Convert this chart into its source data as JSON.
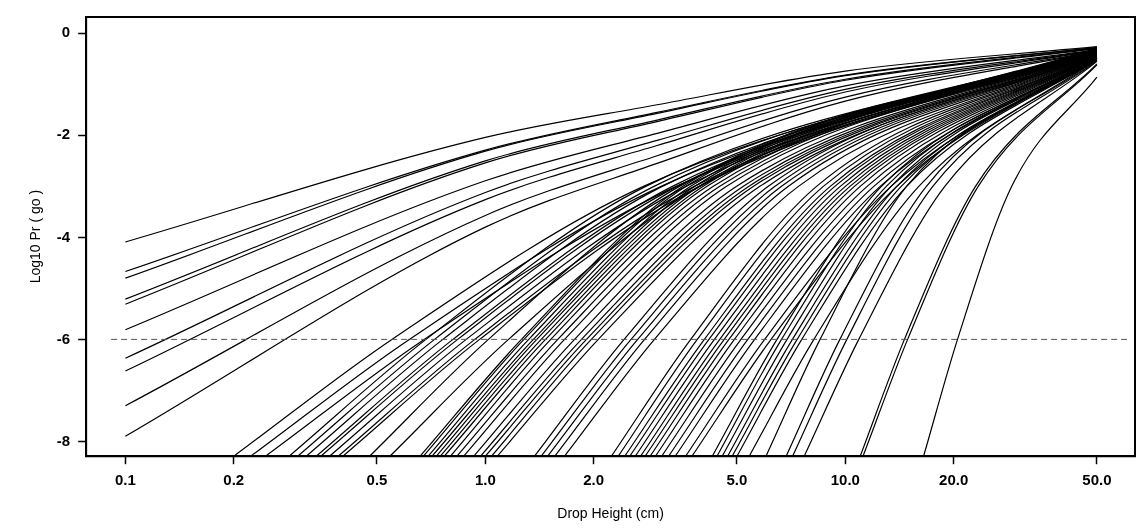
{
  "chart_data": {
    "type": "line",
    "xlabel": "Drop Height (cm)",
    "ylabel": "Log10 Pr ( go )",
    "log": "x",
    "grid": false,
    "legend": false,
    "marker": "none",
    "line_style": "solid",
    "xlim": [
      0.0778,
      63.8
    ],
    "ylim": [
      -8.29,
      0.32
    ],
    "xticks": [
      0.1,
      0.2,
      0.5,
      {
        "value": 1,
        "label": "1.0"
      },
      {
        "value": 2,
        "label": "2.0"
      },
      {
        "value": 5,
        "label": "5.0"
      },
      {
        "value": 10,
        "label": "10.0"
      },
      {
        "value": 20,
        "label": "20.0"
      },
      {
        "value": 50,
        "label": "50.0"
      }
    ],
    "yticks": [
      0,
      -2,
      -4,
      -6,
      -8
    ],
    "ref_lines": [
      {
        "axis": "y",
        "value": -6,
        "color": "#555555",
        "line_style": "dashed"
      }
    ],
    "series": [
      {
        "color": "#000000",
        "x": [
          0.1,
          1,
          3,
          10,
          50
        ],
        "values": [
          -4.09,
          -2.04,
          -1.4,
          -0.74,
          -0.26
        ]
      },
      {
        "color": "#000000",
        "x": [
          0.1,
          1,
          3,
          10,
          50
        ],
        "values": [
          -4.67,
          -2.29,
          -1.55,
          -0.82,
          -0.28
        ]
      },
      {
        "color": "#000000",
        "x": [
          0.1,
          1,
          3,
          10,
          50
        ],
        "values": [
          -4.8,
          -2.31,
          -1.57,
          -0.83,
          -0.28
        ]
      },
      {
        "color": "#000000",
        "x": [
          0.1,
          1,
          3,
          10,
          50
        ],
        "values": [
          -5.21,
          -2.5,
          -1.7,
          -0.9,
          -0.29
        ]
      },
      {
        "color": "#000000",
        "x": [
          0.1,
          1,
          3,
          10,
          50
        ],
        "values": [
          -5.31,
          -2.54,
          -1.73,
          -0.92,
          -0.3
        ]
      },
      {
        "color": "#000000",
        "x": [
          0.1,
          1,
          3,
          10,
          50
        ],
        "values": [
          -5.81,
          -2.89,
          -1.96,
          -1.03,
          -0.32
        ]
      },
      {
        "color": "#000000",
        "x": [
          0.1,
          1,
          3,
          10,
          50
        ],
        "values": [
          -6.37,
          -3.12,
          -2.1,
          -1.1,
          -0.33
        ]
      },
      {
        "color": "#000000",
        "x": [
          0.1,
          1,
          3,
          10,
          50
        ],
        "values": [
          -6.62,
          -3.26,
          -2.2,
          -1.15,
          -0.34
        ]
      },
      {
        "color": "#000000",
        "x": [
          0.1,
          1,
          3,
          10,
          50
        ],
        "values": [
          -7.3,
          -3.57,
          -2.4,
          -1.25,
          -0.35
        ]
      },
      {
        "color": "#000000",
        "x": [
          0.1,
          1,
          3,
          10,
          50
        ],
        "values": [
          -7.9,
          -3.8,
          -2.55,
          -1.33,
          -0.36
        ]
      },
      {
        "color": "#000000",
        "x": [
          0.2,
          0.55,
          2.75,
          50
        ],
        "values": [
          -8.29,
          -6,
          -3,
          -0.3
        ]
      },
      {
        "color": "#000000",
        "x": [
          0.223,
          0.615,
          3.08,
          50
        ],
        "values": [
          -8.29,
          -6,
          -3,
          -0.31
        ]
      },
      {
        "color": "#000000",
        "x": [
          0.245,
          0.676,
          3.39,
          50
        ],
        "values": [
          -8.29,
          -6,
          -3,
          -0.31
        ]
      },
      {
        "color": "#000000",
        "x": [
          0.285,
          0.684,
          2.79,
          50
        ],
        "values": [
          -8.29,
          -6,
          -3,
          -0.32
        ]
      },
      {
        "color": "#000000",
        "x": [
          0.301,
          0.723,
          2.94,
          50
        ],
        "values": [
          -8.29,
          -6,
          -3,
          -0.32
        ]
      },
      {
        "color": "#000000",
        "x": [
          0.318,
          0.762,
          3.1,
          50
        ],
        "values": [
          -8.29,
          -6,
          -3,
          -0.33
        ]
      },
      {
        "color": "#000000",
        "x": [
          0.339,
          0.813,
          3.31,
          50
        ],
        "values": [
          -8.29,
          -6,
          -3,
          -0.33
        ]
      },
      {
        "color": "#000000",
        "x": [
          0.349,
          0.838,
          3.41,
          50
        ],
        "values": [
          -8.29,
          -6,
          -3,
          -0.33
        ]
      },
      {
        "color": "#000000",
        "x": [
          0.369,
          0.885,
          3.61,
          50
        ],
        "values": [
          -8.29,
          -6,
          -3,
          -0.34
        ]
      },
      {
        "color": "#000000",
        "x": [
          0.39,
          0.935,
          3.81,
          50
        ],
        "values": [
          -8.29,
          -6,
          -3,
          -0.34
        ]
      },
      {
        "color": "#000000",
        "x": [
          0.402,
          0.964,
          3.93,
          50
        ],
        "values": [
          -8.29,
          -6,
          -3,
          -0.34
        ]
      },
      {
        "color": "#000000",
        "x": [
          0.477,
          1.02,
          3.46,
          50
        ],
        "values": [
          -8.29,
          -6,
          -3,
          -0.34
        ]
      },
      {
        "color": "#000000",
        "x": [
          0.543,
          1.16,
          3.94,
          50
        ],
        "values": [
          -8.29,
          -6,
          -3,
          -0.35
        ]
      },
      {
        "color": "#000000",
        "x": [
          0.659,
          1.26,
          3.54,
          50
        ],
        "values": [
          -8.29,
          -6,
          -3,
          -0.35
        ]
      },
      {
        "color": "#000000",
        "x": [
          0.673,
          1.28,
          3.61,
          50
        ],
        "values": [
          -8.29,
          -6,
          -3,
          -0.35
        ]
      },
      {
        "color": "#000000",
        "x": [
          0.694,
          1.32,
          3.72,
          50
        ],
        "values": [
          -8.29,
          -6,
          -3,
          -0.36
        ]
      },
      {
        "color": "#000000",
        "x": [
          0.711,
          1.36,
          3.82,
          50
        ],
        "values": [
          -8.29,
          -6,
          -3,
          -0.36
        ]
      },
      {
        "color": "#000000",
        "x": [
          0.731,
          1.39,
          3.93,
          50
        ],
        "values": [
          -8.29,
          -6,
          -3,
          -0.36
        ]
      },
      {
        "color": "#000000",
        "x": [
          0.75,
          1.43,
          4.03,
          50
        ],
        "values": [
          -8.29,
          -6,
          -3,
          -0.37
        ]
      },
      {
        "color": "#000000",
        "x": [
          0.769,
          1.47,
          4.13,
          50
        ],
        "values": [
          -8.29,
          -6,
          -3,
          -0.37
        ]
      },
      {
        "color": "#000000",
        "x": [
          0.8,
          1.52,
          4.3,
          50
        ],
        "values": [
          -8.29,
          -6,
          -3,
          -0.37
        ]
      },
      {
        "color": "#000000",
        "x": [
          0.834,
          1.59,
          4.48,
          50
        ],
        "values": [
          -8.29,
          -6,
          -3,
          -0.38
        ]
      },
      {
        "color": "#000000",
        "x": [
          0.871,
          1.66,
          4.68,
          50
        ],
        "values": [
          -8.29,
          -6,
          -3,
          -0.38
        ]
      },
      {
        "color": "#000000",
        "x": [
          0.929,
          1.77,
          4.99,
          50
        ],
        "values": [
          -8.29,
          -6,
          -3,
          -0.38
        ]
      },
      {
        "color": "#000000",
        "x": [
          0.97,
          1.85,
          5.21,
          50
        ],
        "values": [
          -8.29,
          -6,
          -3,
          -0.39
        ]
      },
      {
        "color": "#000000",
        "x": [
          1.0,
          1.91,
          5.4,
          50
        ],
        "values": [
          -8.29,
          -6,
          -3,
          -0.39
        ]
      },
      {
        "color": "#000000",
        "x": [
          1.04,
          1.97,
          5.56,
          50
        ],
        "values": [
          -8.29,
          -6,
          -3,
          -0.39
        ]
      },
      {
        "color": "#000000",
        "x": [
          1.08,
          2.06,
          5.79,
          50
        ],
        "values": [
          -8.29,
          -6,
          -3,
          -0.4
        ]
      },
      {
        "color": "#000000",
        "x": [
          1.37,
          2.43,
          6.11,
          50
        ],
        "values": [
          -8.29,
          -6,
          -3,
          -0.41
        ]
      },
      {
        "color": "#000000",
        "x": [
          1.43,
          2.54,
          6.38,
          50
        ],
        "values": [
          -8.29,
          -6,
          -3,
          -0.41
        ]
      },
      {
        "color": "#000000",
        "x": [
          1.49,
          2.65,
          6.65,
          50
        ],
        "values": [
          -8.29,
          -6,
          -3,
          -0.41
        ]
      },
      {
        "color": "#000000",
        "x": [
          1.56,
          2.77,
          6.95,
          50
        ],
        "values": [
          -8.29,
          -6,
          -3,
          -0.42
        ]
      },
      {
        "color": "#000000",
        "x": [
          1.66,
          2.95,
          7.41,
          50
        ],
        "values": [
          -8.29,
          -6,
          -3,
          -0.42
        ]
      },
      {
        "color": "#000000",
        "x": [
          2.24,
          3.72,
          8.32,
          50
        ],
        "values": [
          -8.29,
          -6,
          -3,
          -0.42
        ]
      },
      {
        "color": "#000000",
        "x": [
          2.34,
          3.88,
          8.69,
          50
        ],
        "values": [
          -8.29,
          -6,
          -3,
          -0.43
        ]
      },
      {
        "color": "#000000",
        "x": [
          2.44,
          4.06,
          9.08,
          50
        ],
        "values": [
          -8.29,
          -6,
          -3,
          -0.43
        ]
      },
      {
        "color": "#000000",
        "x": [
          2.52,
          4.18,
          9.35,
          50
        ],
        "values": [
          -8.29,
          -6,
          -3,
          -0.43
        ]
      },
      {
        "color": "#000000",
        "x": [
          2.61,
          4.33,
          9.68,
          50
        ],
        "values": [
          -8.29,
          -6,
          -3,
          -0.44
        ]
      },
      {
        "color": "#000000",
        "x": [
          2.7,
          4.48,
          10.0,
          50
        ],
        "values": [
          -8.29,
          -6,
          -3,
          -0.44
        ]
      },
      {
        "color": "#000000",
        "x": [
          2.78,
          4.61,
          10.3,
          50
        ],
        "values": [
          -8.29,
          -6,
          -3,
          -0.44
        ]
      },
      {
        "color": "#000000",
        "x": [
          2.87,
          4.75,
          10.6,
          50
        ],
        "values": [
          -8.29,
          -6,
          -3,
          -0.45
        ]
      },
      {
        "color": "#000000",
        "x": [
          2.97,
          4.92,
          11.0,
          50
        ],
        "values": [
          -8.29,
          -6,
          -3,
          -0.45
        ]
      },
      {
        "color": "#000000",
        "x": [
          3.09,
          5.13,
          11.5,
          50
        ],
        "values": [
          -8.29,
          -6,
          -3,
          -0.45
        ]
      },
      {
        "color": "#000000",
        "x": [
          3.23,
          5.36,
          12.0,
          50
        ],
        "values": [
          -8.29,
          -6,
          -3,
          -0.46
        ]
      },
      {
        "color": "#000000",
        "x": [
          3.37,
          5.6,
          12.5,
          50
        ],
        "values": [
          -8.29,
          -6,
          -3,
          -0.46
        ]
      },
      {
        "color": "#000000",
        "x": [
          3.6,
          5.97,
          13.4,
          50
        ],
        "values": [
          -8.29,
          -6,
          -3,
          -0.47
        ]
      },
      {
        "color": "#000000",
        "x": [
          3.75,
          6.22,
          13.9,
          50
        ],
        "values": [
          -8.29,
          -6,
          -3,
          -0.47
        ]
      },
      {
        "color": "#000000",
        "x": [
          4.27,
          6.46,
          12.6,
          50
        ],
        "values": [
          -8.29,
          -6,
          -3,
          -0.48
        ]
      },
      {
        "color": "#000000",
        "x": [
          4.4,
          6.65,
          13.0,
          50
        ],
        "values": [
          -8.29,
          -6,
          -3,
          -0.48
        ]
      },
      {
        "color": "#000000",
        "x": [
          4.55,
          6.89,
          13.4,
          50
        ],
        "values": [
          -8.29,
          -6,
          -3,
          -0.49
        ]
      },
      {
        "color": "#000000",
        "x": [
          4.71,
          7.13,
          13.9,
          50
        ],
        "values": [
          -8.29,
          -6,
          -3,
          -0.49
        ]
      },
      {
        "color": "#000000",
        "x": [
          4.85,
          7.35,
          14.3,
          50
        ],
        "values": [
          -8.29,
          -6,
          -3,
          -0.5
        ]
      },
      {
        "color": "#000000",
        "x": [
          5.0,
          7.57,
          14.8,
          50
        ],
        "values": [
          -8.29,
          -6,
          -3,
          -0.5
        ]
      },
      {
        "color": "#000000",
        "x": [
          5.41,
          8.18,
          16.0,
          50
        ],
        "values": [
          -8.29,
          -6,
          -3,
          -0.51
        ]
      },
      {
        "color": "#000000",
        "x": [
          6.02,
          8.51,
          14.8,
          50
        ],
        "values": [
          -8.29,
          -6,
          -3,
          -0.52
        ]
      },
      {
        "color": "#000000",
        "x": [
          6.85,
          9.66,
          16.8,
          50
        ],
        "values": [
          -8.29,
          -6,
          -3,
          -0.53
        ]
      },
      {
        "color": "#000000",
        "x": [
          7.14,
          10.1,
          17.5,
          50
        ],
        "values": [
          -8.29,
          -6,
          -3,
          -0.54
        ]
      },
      {
        "color": "#000000",
        "x": [
          7.69,
          10.9,
          18.9,
          50
        ],
        "values": [
          -8.29,
          -6,
          -3,
          -0.55
        ]
      },
      {
        "color": "#000000",
        "x": [
          11.0,
          14.6,
          23.0,
          50
        ],
        "values": [
          -8.29,
          -6,
          -3,
          -0.6
        ]
      },
      {
        "color": "#000000",
        "x": [
          11.2,
          14.9,
          23.4,
          50
        ],
        "values": [
          -8.29,
          -6,
          -3,
          -0.62
        ]
      },
      {
        "color": "#000000",
        "x": [
          16.5,
          20.5,
          29.0,
          50
        ],
        "values": [
          -8.29,
          -6,
          -3,
          -0.86
        ]
      }
    ]
  }
}
